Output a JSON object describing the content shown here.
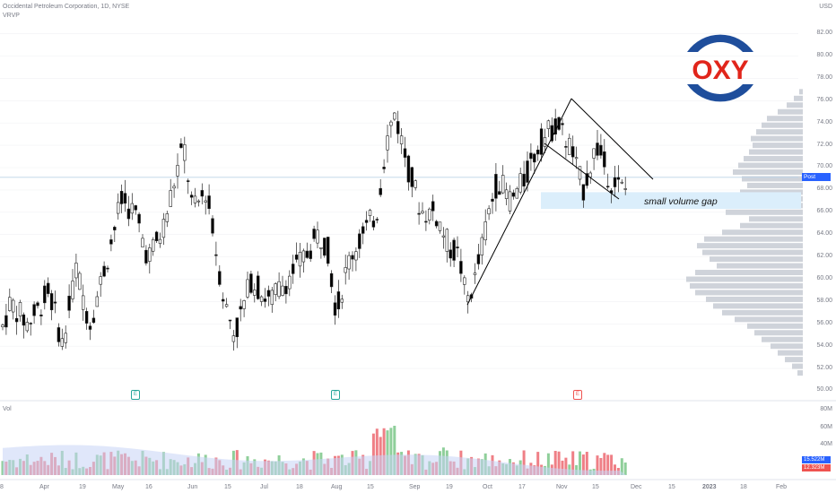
{
  "legend": {
    "symbol": "Occidental Petroleum Corporation, 1D, NYSE",
    "indicator": "VRVP"
  },
  "price_axis": {
    "currency": "USD",
    "ticks": [
      "82.00",
      "80.00",
      "78.00",
      "76.00",
      "74.00",
      "72.00",
      "70.00",
      "68.00",
      "66.00",
      "64.00",
      "62.00",
      "60.00",
      "58.00",
      "56.00",
      "54.00",
      "52.00",
      "50.00"
    ]
  },
  "current_price_tag": "Post 69.13",
  "volume_pane": {
    "label": "Vol",
    "ticks": [
      "80M",
      "60M",
      "40M"
    ],
    "tag_blue": "15.522M",
    "tag_red": "12.323M"
  },
  "time_axis": {
    "labels": [
      "8",
      "Apr",
      "19",
      "May",
      "16",
      "Jun",
      "15",
      "Jul",
      "18",
      "Aug",
      "15",
      "Sep",
      "19",
      "Oct",
      "17",
      "Nov",
      "15",
      "Dec",
      "15",
      "2023",
      "18",
      "Feb"
    ]
  },
  "annotation": "small volume gap",
  "earnings_markers": [
    "E",
    "E",
    "E"
  ],
  "logo": {
    "text": "OXY",
    "colors": {
      "blue": "#1f4e9c",
      "red": "#e1251b"
    }
  },
  "colors": {
    "up": "#ffffff",
    "down": "#000000",
    "vol_up": "#8fcf9a",
    "vol_down": "#ef7f86",
    "price_tag": "#2962ff",
    "vrvp": "#cfd3da",
    "gap_zone": "#dbeefb",
    "ma_area": "#c6d4f5"
  }
}
